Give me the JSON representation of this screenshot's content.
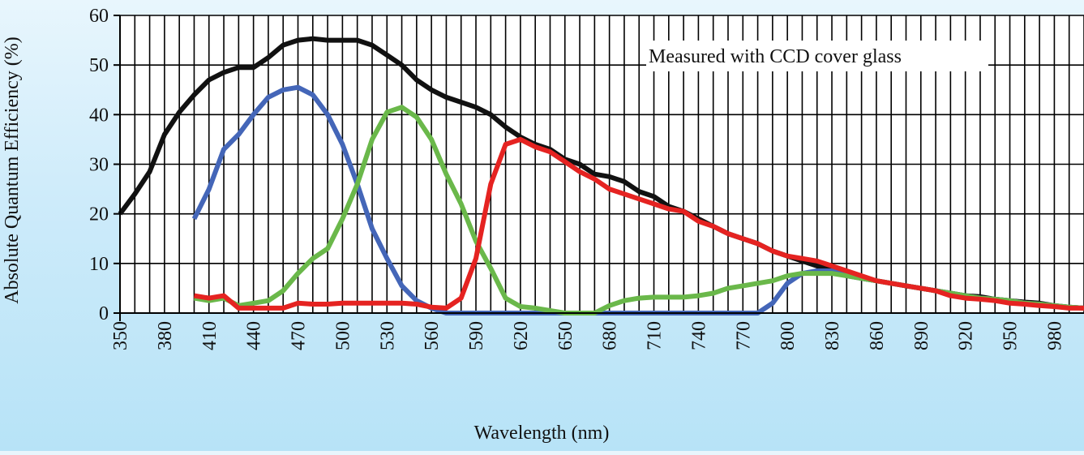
{
  "chart_data": {
    "type": "line",
    "title": "",
    "xlabel": "Wavelength (nm)",
    "ylabel": "Absolute Quantum Efficiency (%)",
    "annotation": "Measured with CCD cover glass",
    "xlim": [
      350,
      1000
    ],
    "ylim": [
      0,
      60
    ],
    "x_ticks": [
      350,
      380,
      410,
      440,
      470,
      500,
      530,
      560,
      590,
      620,
      650,
      680,
      710,
      740,
      770,
      800,
      830,
      860,
      890,
      920,
      950,
      980
    ],
    "y_ticks": [
      0,
      10,
      20,
      30,
      40,
      50,
      60
    ],
    "grid": true,
    "grid_x_step": 10,
    "legend": "none",
    "x": [
      350,
      360,
      370,
      380,
      390,
      400,
      410,
      420,
      430,
      440,
      450,
      460,
      470,
      480,
      490,
      500,
      510,
      520,
      530,
      540,
      550,
      560,
      570,
      580,
      590,
      600,
      610,
      620,
      630,
      640,
      650,
      660,
      670,
      680,
      690,
      700,
      710,
      720,
      730,
      740,
      750,
      760,
      770,
      780,
      790,
      800,
      810,
      820,
      830,
      840,
      850,
      860,
      870,
      880,
      890,
      900,
      910,
      920,
      930,
      940,
      950,
      960,
      970,
      980,
      990,
      1000
    ],
    "series": [
      {
        "color": "#111111",
        "values": [
          20,
          24,
          28.5,
          36,
          40.5,
          44,
          47,
          48.5,
          49.5,
          49.5,
          51.5,
          54,
          55,
          55.3,
          55,
          55,
          55,
          54,
          52,
          50,
          47,
          45,
          43.5,
          42.5,
          41.5,
          40,
          37.5,
          35.5,
          34,
          33,
          31,
          30,
          28,
          27.5,
          26.5,
          24.5,
          23.5,
          21.5,
          20.5,
          19,
          17.5,
          16,
          15,
          14,
          12.5,
          11.5,
          10.5,
          9.5,
          9,
          8,
          7,
          6.5,
          6,
          5.5,
          5,
          4.5,
          4,
          3.5,
          3.3,
          2.8,
          2.5,
          2.2,
          2,
          1.5,
          1.2,
          1
        ]
      },
      {
        "color": "#4466b8",
        "values": [
          null,
          null,
          null,
          null,
          null,
          19,
          25,
          33,
          36,
          40,
          43.5,
          45,
          45.5,
          44,
          40,
          34,
          26,
          17,
          11,
          5.5,
          2.5,
          1,
          0,
          0,
          0,
          0,
          0,
          0,
          0,
          0,
          0,
          0,
          0,
          0,
          0,
          0,
          0,
          0,
          0,
          0,
          0,
          0,
          0,
          0,
          2,
          6,
          8,
          8.5,
          8.5,
          7.5,
          7,
          6.5,
          6,
          5.5,
          5,
          4.5,
          4,
          3.5,
          3,
          2.8,
          2.5,
          2,
          1.8,
          1.5,
          1.2,
          1
        ]
      },
      {
        "color": "#6ab84a",
        "values": [
          null,
          null,
          null,
          null,
          null,
          3,
          2.5,
          3,
          1.5,
          2,
          2.5,
          4.5,
          8,
          11,
          13,
          19,
          26,
          35,
          40.5,
          41.5,
          39.5,
          35,
          28,
          22,
          14.5,
          9,
          3,
          1.3,
          1,
          0.5,
          0,
          0,
          0,
          1.5,
          2.5,
          3,
          3.2,
          3.2,
          3.2,
          3.5,
          4,
          5,
          5.5,
          6,
          6.5,
          7.5,
          8,
          8,
          8,
          7.5,
          7,
          6.5,
          6,
          5.5,
          5,
          4.5,
          4,
          3.5,
          3,
          2.8,
          2.5,
          2,
          1.8,
          1.5,
          1.2,
          1
        ]
      },
      {
        "color": "#e52321",
        "values": [
          null,
          null,
          null,
          null,
          null,
          3.5,
          3,
          3.5,
          1,
          1,
          1,
          1,
          2,
          1.8,
          1.8,
          2,
          2,
          2,
          2,
          2,
          1.8,
          1.2,
          1,
          3,
          11,
          26,
          34,
          35,
          33.5,
          32.5,
          30.5,
          28.5,
          27,
          25,
          24,
          23,
          22,
          21,
          20.5,
          18.5,
          17.5,
          16,
          15,
          14,
          12.5,
          11.5,
          11,
          10.5,
          9.5,
          8.5,
          7.5,
          6.5,
          6,
          5.5,
          5,
          4.5,
          3.5,
          3,
          2.8,
          2.5,
          2,
          1.8,
          1.5,
          1.3,
          1,
          1
        ]
      }
    ]
  }
}
